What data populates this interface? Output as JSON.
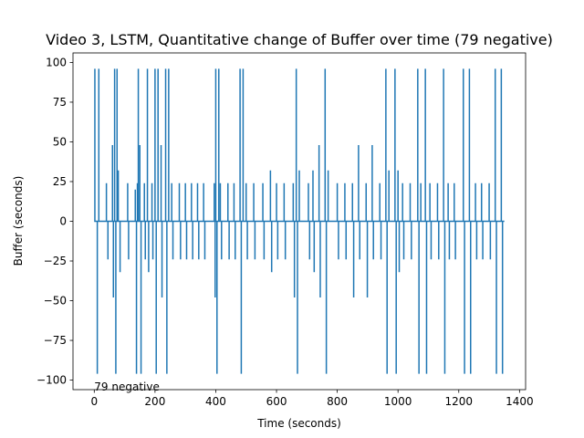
{
  "chart_data": {
    "type": "line",
    "title": "Video 3, LSTM, Quantitative change of Buffer over time (79 negative)",
    "xlabel": "Time (seconds)",
    "ylabel": "Buffer (seconds)",
    "xlim": [
      -70,
      1420
    ],
    "ylim": [
      -106,
      106
    ],
    "xticks": [
      0,
      200,
      400,
      600,
      800,
      1000,
      1200,
      1400
    ],
    "yticks": [
      -100,
      -75,
      -50,
      -25,
      0,
      25,
      50,
      75,
      100
    ],
    "grid": false,
    "annotation": {
      "text": "79 negative",
      "x": 0,
      "y": -103
    },
    "series": [
      {
        "color": "#1f77b4",
        "spikes": [
          {
            "x": 2,
            "y": 96
          },
          {
            "x": 10,
            "y": -96
          },
          {
            "x": 15,
            "y": 96
          },
          {
            "x": 40,
            "y": 24
          },
          {
            "x": 45,
            "y": -24
          },
          {
            "x": 60,
            "y": 48
          },
          {
            "x": 63,
            "y": -48
          },
          {
            "x": 67,
            "y": 96
          },
          {
            "x": 71,
            "y": -96
          },
          {
            "x": 75,
            "y": 96
          },
          {
            "x": 79,
            "y": 32
          },
          {
            "x": 85,
            "y": -32
          },
          {
            "x": 110,
            "y": 24
          },
          {
            "x": 113,
            "y": -24
          },
          {
            "x": 135,
            "y": 20
          },
          {
            "x": 139,
            "y": -96
          },
          {
            "x": 142,
            "y": 24
          },
          {
            "x": 145,
            "y": 96
          },
          {
            "x": 150,
            "y": 48
          },
          {
            "x": 154,
            "y": -96
          },
          {
            "x": 165,
            "y": 24
          },
          {
            "x": 168,
            "y": -24
          },
          {
            "x": 175,
            "y": 96
          },
          {
            "x": 179,
            "y": -32
          },
          {
            "x": 190,
            "y": 24
          },
          {
            "x": 193,
            "y": -24
          },
          {
            "x": 200,
            "y": 96
          },
          {
            "x": 204,
            "y": -96
          },
          {
            "x": 210,
            "y": 96
          },
          {
            "x": 220,
            "y": 48
          },
          {
            "x": 223,
            "y": -48
          },
          {
            "x": 235,
            "y": 96
          },
          {
            "x": 239,
            "y": -96
          },
          {
            "x": 245,
            "y": 96
          },
          {
            "x": 255,
            "y": 24
          },
          {
            "x": 259,
            "y": -24
          },
          {
            "x": 280,
            "y": 24
          },
          {
            "x": 284,
            "y": -24
          },
          {
            "x": 300,
            "y": 24
          },
          {
            "x": 304,
            "y": -24
          },
          {
            "x": 320,
            "y": 24
          },
          {
            "x": 324,
            "y": -24
          },
          {
            "x": 340,
            "y": 24
          },
          {
            "x": 344,
            "y": -24
          },
          {
            "x": 360,
            "y": 24
          },
          {
            "x": 364,
            "y": -24
          },
          {
            "x": 395,
            "y": 24
          },
          {
            "x": 398,
            "y": -48
          },
          {
            "x": 400,
            "y": 96
          },
          {
            "x": 404,
            "y": -96
          },
          {
            "x": 410,
            "y": 96
          },
          {
            "x": 415,
            "y": 24
          },
          {
            "x": 419,
            "y": -24
          },
          {
            "x": 440,
            "y": 24
          },
          {
            "x": 444,
            "y": -24
          },
          {
            "x": 460,
            "y": 24
          },
          {
            "x": 464,
            "y": -24
          },
          {
            "x": 480,
            "y": 96
          },
          {
            "x": 484,
            "y": -96
          },
          {
            "x": 490,
            "y": 96
          },
          {
            "x": 500,
            "y": 24
          },
          {
            "x": 504,
            "y": -24
          },
          {
            "x": 525,
            "y": 24
          },
          {
            "x": 529,
            "y": -24
          },
          {
            "x": 555,
            "y": 24
          },
          {
            "x": 559,
            "y": -24
          },
          {
            "x": 580,
            "y": 32
          },
          {
            "x": 584,
            "y": -32
          },
          {
            "x": 600,
            "y": 24
          },
          {
            "x": 604,
            "y": -24
          },
          {
            "x": 625,
            "y": 24
          },
          {
            "x": 629,
            "y": -24
          },
          {
            "x": 655,
            "y": 24
          },
          {
            "x": 659,
            "y": -48
          },
          {
            "x": 665,
            "y": 96
          },
          {
            "x": 669,
            "y": -96
          },
          {
            "x": 675,
            "y": 32
          },
          {
            "x": 705,
            "y": 24
          },
          {
            "x": 709,
            "y": -24
          },
          {
            "x": 720,
            "y": 32
          },
          {
            "x": 724,
            "y": -32
          },
          {
            "x": 740,
            "y": 48
          },
          {
            "x": 744,
            "y": -48
          },
          {
            "x": 760,
            "y": 96
          },
          {
            "x": 764,
            "y": -96
          },
          {
            "x": 770,
            "y": 32
          },
          {
            "x": 800,
            "y": 24
          },
          {
            "x": 804,
            "y": -24
          },
          {
            "x": 825,
            "y": 24
          },
          {
            "x": 829,
            "y": -24
          },
          {
            "x": 850,
            "y": 24
          },
          {
            "x": 854,
            "y": -48
          },
          {
            "x": 870,
            "y": 48
          },
          {
            "x": 874,
            "y": -24
          },
          {
            "x": 895,
            "y": 24
          },
          {
            "x": 899,
            "y": -48
          },
          {
            "x": 915,
            "y": 48
          },
          {
            "x": 919,
            "y": -24
          },
          {
            "x": 940,
            "y": 24
          },
          {
            "x": 944,
            "y": -24
          },
          {
            "x": 960,
            "y": 96
          },
          {
            "x": 964,
            "y": -96
          },
          {
            "x": 970,
            "y": 32
          },
          {
            "x": 990,
            "y": 96
          },
          {
            "x": 994,
            "y": -96
          },
          {
            "x": 1000,
            "y": 32
          },
          {
            "x": 1004,
            "y": -32
          },
          {
            "x": 1015,
            "y": 24
          },
          {
            "x": 1019,
            "y": -24
          },
          {
            "x": 1040,
            "y": 24
          },
          {
            "x": 1044,
            "y": -24
          },
          {
            "x": 1065,
            "y": 96
          },
          {
            "x": 1069,
            "y": -96
          },
          {
            "x": 1075,
            "y": 24
          },
          {
            "x": 1090,
            "y": 96
          },
          {
            "x": 1094,
            "y": -96
          },
          {
            "x": 1105,
            "y": 24
          },
          {
            "x": 1109,
            "y": -24
          },
          {
            "x": 1130,
            "y": 24
          },
          {
            "x": 1134,
            "y": -24
          },
          {
            "x": 1150,
            "y": 96
          },
          {
            "x": 1154,
            "y": -96
          },
          {
            "x": 1165,
            "y": 24
          },
          {
            "x": 1169,
            "y": -24
          },
          {
            "x": 1185,
            "y": 24
          },
          {
            "x": 1189,
            "y": -24
          },
          {
            "x": 1215,
            "y": 96
          },
          {
            "x": 1219,
            "y": -96
          },
          {
            "x": 1235,
            "y": 96
          },
          {
            "x": 1239,
            "y": -96
          },
          {
            "x": 1255,
            "y": 24
          },
          {
            "x": 1259,
            "y": -24
          },
          {
            "x": 1275,
            "y": 24
          },
          {
            "x": 1279,
            "y": -24
          },
          {
            "x": 1300,
            "y": 24
          },
          {
            "x": 1304,
            "y": -24
          },
          {
            "x": 1320,
            "y": 96
          },
          {
            "x": 1324,
            "y": -96
          },
          {
            "x": 1340,
            "y": 96
          },
          {
            "x": 1344,
            "y": -96
          }
        ],
        "baseline_end_x": 1350
      }
    ]
  }
}
